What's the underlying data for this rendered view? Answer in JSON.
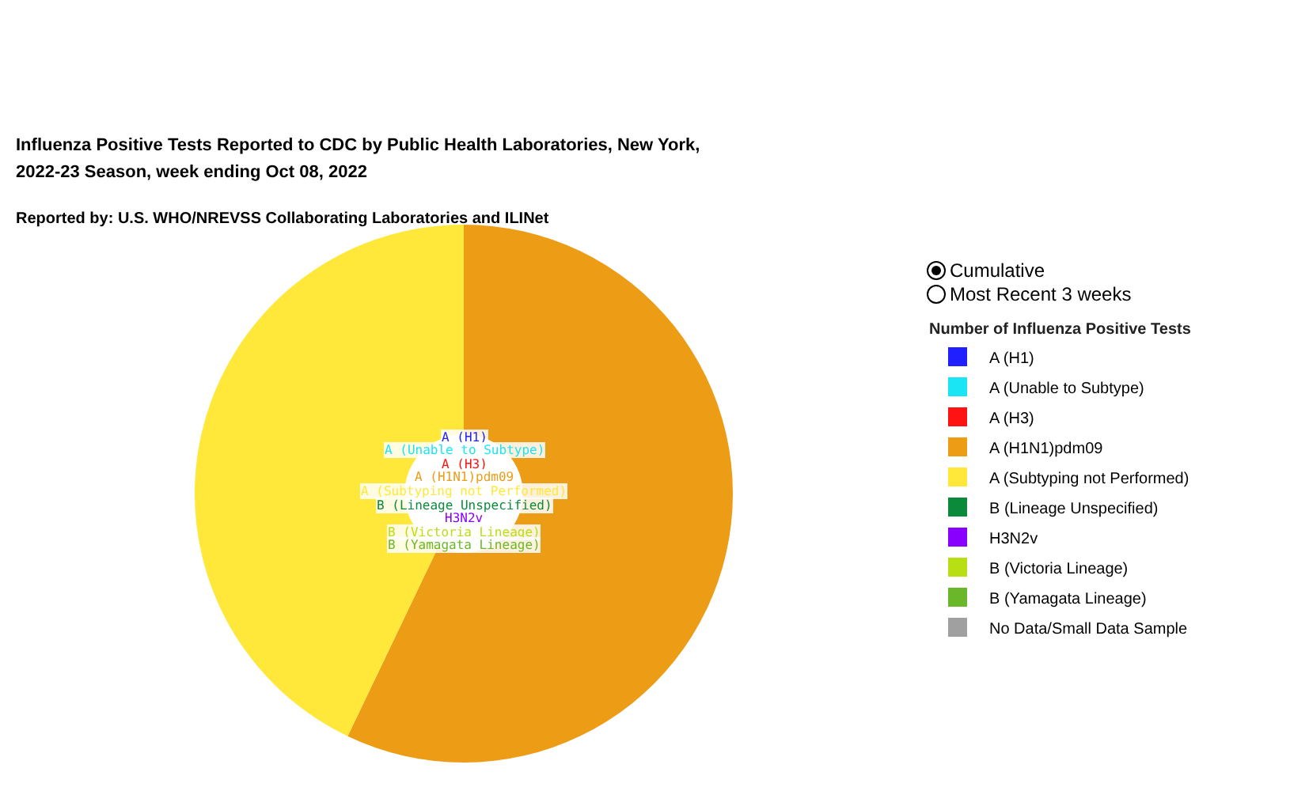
{
  "chart_data": {
    "type": "donut",
    "title": "Influenza Positive Tests Reported to CDC by Public Health Laboratories, New York, 2022-23 Season, week ending Oct 08, 2022",
    "subtitle": "Reported by: U.S. WHO/NREVSS Collaborating Laboratories and ILINet",
    "legend_title": "Number of Influenza Positive Tests",
    "categories": [
      "A (H1)",
      "A (Unable to Subtype)",
      "A (H3)",
      "A (H1N1)pdm09",
      "A (Subtyping not Performed)",
      "B (Lineage Unspecified)",
      "H3N2v",
      "B (Victoria Lineage)",
      "B (Yamagata Lineage)",
      "No Data/Small Data Sample"
    ],
    "values": [
      0,
      0,
      0,
      57.1,
      42.9,
      0,
      0,
      0,
      0,
      0
    ],
    "colors": [
      "#1f1fff",
      "#19e5f5",
      "#ff1212",
      "#ed9c16",
      "#ffe83a",
      "#0a8a3a",
      "#8a00ff",
      "#b8de14",
      "#6ab82a",
      "#a0a0a0"
    ],
    "annotations": [
      "Cumulative",
      "Most Recent 3 weeks"
    ],
    "legend": "right"
  }
}
